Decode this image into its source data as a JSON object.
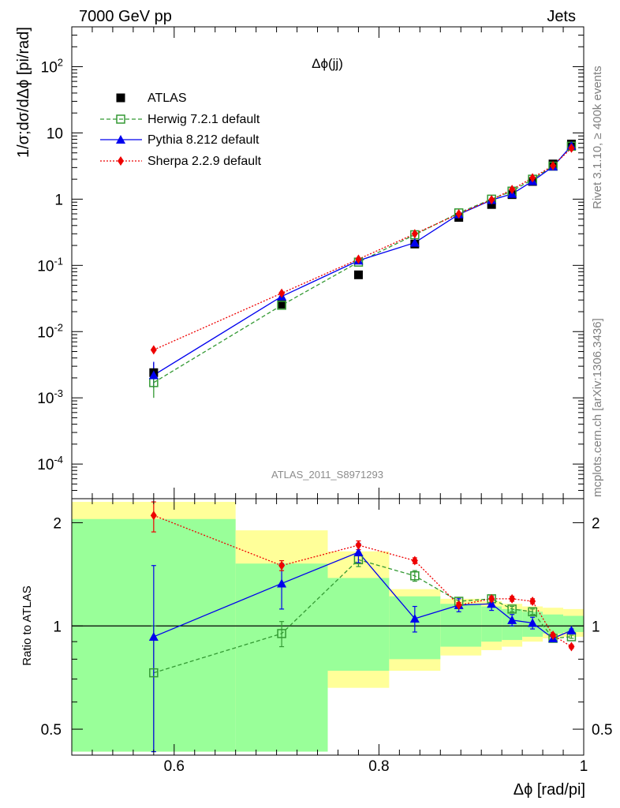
{
  "header": {
    "left": "7000 GeV pp",
    "right": "Jets"
  },
  "side_labels": {
    "rivet": "Rivet 3.1.10, ≥ 400k events",
    "mcplots": "mcplots.cern.ch [arXiv:1306.3436]"
  },
  "chart_data": [
    {
      "type": "scatter",
      "title": "Δϕ(jj)",
      "analysis": "ATLAS_2011_S8971293",
      "ylabel": "1/σ;dσ/dΔϕ [pi/rad]",
      "yscale": "log",
      "ylim": [
        3e-05,
        400
      ],
      "xlim": [
        0.5,
        1.0
      ],
      "y_tick_labels": [
        "10^2",
        "10",
        "1",
        "10^-1",
        "10^-2",
        "10^-3",
        "10^-4"
      ],
      "legend_position": "top-left",
      "x": [
        0.58,
        0.705,
        0.78,
        0.835,
        0.878,
        0.91,
        0.93,
        0.95,
        0.97,
        0.988
      ],
      "series": [
        {
          "name": "ATLAS",
          "color": "#000000",
          "marker": "square-filled",
          "values": [
            0.0024,
            0.026,
            0.072,
            0.21,
            0.53,
            0.83,
            1.17,
            1.85,
            3.4,
            6.8
          ],
          "err_low": [
            0.0014,
            0.023,
            0.065,
            0.19,
            0.49,
            0.77,
            1.09,
            1.73,
            3.2,
            6.5
          ],
          "err_high": [
            0.0034,
            0.029,
            0.079,
            0.23,
            0.57,
            0.89,
            1.25,
            1.97,
            3.6,
            7.1
          ]
        },
        {
          "name": "Herwig 7.2.1 default",
          "color": "#339933",
          "marker": "square-open",
          "line": "dashed",
          "values": [
            0.0017,
            0.025,
            0.112,
            0.29,
            0.62,
            1.0,
            1.32,
            2.0,
            3.15,
            6.3
          ]
        },
        {
          "name": "Pythia 8.212 default",
          "color": "#0000ee",
          "marker": "triangle",
          "line": "solid",
          "values": [
            0.0022,
            0.034,
            0.118,
            0.22,
            0.59,
            0.97,
            1.2,
            1.87,
            3.1,
            6.4
          ]
        },
        {
          "name": "Sherpa 2.2.9 default",
          "color": "#ee0000",
          "marker": "diamond",
          "line": "dotted",
          "values": [
            0.0053,
            0.038,
            0.124,
            0.3,
            0.6,
            0.98,
            1.4,
            2.1,
            3.2,
            5.9
          ]
        }
      ]
    },
    {
      "type": "scatter",
      "ylabel": "Ratio to ATLAS",
      "xlabel": "Δϕ [rad/pi]",
      "yscale": "log",
      "ylim": [
        0.42,
        2.35
      ],
      "xlim": [
        0.5,
        1.0
      ],
      "y_ticks": [
        0.5,
        1,
        2
      ],
      "y_tick_labels": [
        "0.5",
        "1",
        "2"
      ],
      "x_ticks": [
        0.6,
        0.8,
        1.0
      ],
      "x_tick_labels": [
        "0.6",
        "0.8",
        "1"
      ],
      "reference_line": 1,
      "bands": {
        "edges": [
          0.5,
          0.66,
          0.75,
          0.81,
          0.86,
          0.9,
          0.92,
          0.94,
          0.96,
          0.98,
          1.0
        ],
        "yellow_low": [
          0.43,
          0.55,
          0.66,
          0.74,
          0.82,
          0.85,
          0.87,
          0.9,
          0.92,
          0.93
        ],
        "yellow_high": [
          2.3,
          1.9,
          1.65,
          1.28,
          1.2,
          1.18,
          1.16,
          1.14,
          1.13,
          1.12
        ],
        "green_low": [
          0.43,
          0.43,
          0.74,
          0.8,
          0.87,
          0.9,
          0.91,
          0.93,
          0.95,
          0.96
        ],
        "green_high": [
          2.05,
          1.52,
          1.38,
          1.22,
          1.16,
          1.14,
          1.12,
          1.1,
          1.08,
          1.07
        ]
      },
      "x": [
        0.58,
        0.705,
        0.78,
        0.835,
        0.878,
        0.91,
        0.93,
        0.95,
        0.97,
        0.988
      ],
      "series": [
        {
          "name": "Herwig 7.2.1 default",
          "color": "#339933",
          "marker": "square-open",
          "line": "dashed",
          "values": [
            0.73,
            0.95,
            1.56,
            1.4,
            1.18,
            1.2,
            1.12,
            1.1,
            0.92,
            0.93
          ],
          "err_low": [
            0.43,
            0.87,
            1.49,
            1.35,
            1.15,
            1.17,
            1.1,
            1.08,
            0.91,
            0.92
          ],
          "err_high": [
            1.0,
            1.03,
            1.63,
            1.45,
            1.21,
            1.23,
            1.14,
            1.12,
            0.93,
            0.94
          ]
        },
        {
          "name": "Pythia 8.212 default",
          "color": "#0000ee",
          "marker": "triangle",
          "line": "solid",
          "values": [
            0.93,
            1.33,
            1.64,
            1.05,
            1.15,
            1.16,
            1.04,
            1.02,
            0.92,
            0.97
          ],
          "err_low": [
            0.43,
            1.12,
            1.53,
            0.96,
            1.1,
            1.11,
            1.0,
            0.98,
            0.91,
            0.96
          ],
          "err_high": [
            1.5,
            1.52,
            1.74,
            1.14,
            1.2,
            1.21,
            1.08,
            1.06,
            0.93,
            0.98
          ]
        },
        {
          "name": "Sherpa 2.2.9 default",
          "color": "#ee0000",
          "marker": "diamond",
          "line": "dotted",
          "values": [
            2.1,
            1.5,
            1.72,
            1.55,
            1.15,
            1.2,
            1.2,
            1.18,
            0.94,
            0.87
          ],
          "err_low": [
            1.88,
            1.45,
            1.67,
            1.52,
            1.13,
            1.18,
            1.18,
            1.16,
            0.93,
            0.86
          ],
          "err_high": [
            2.3,
            1.55,
            1.77,
            1.58,
            1.17,
            1.22,
            1.22,
            1.2,
            0.95,
            0.88
          ]
        }
      ]
    }
  ]
}
